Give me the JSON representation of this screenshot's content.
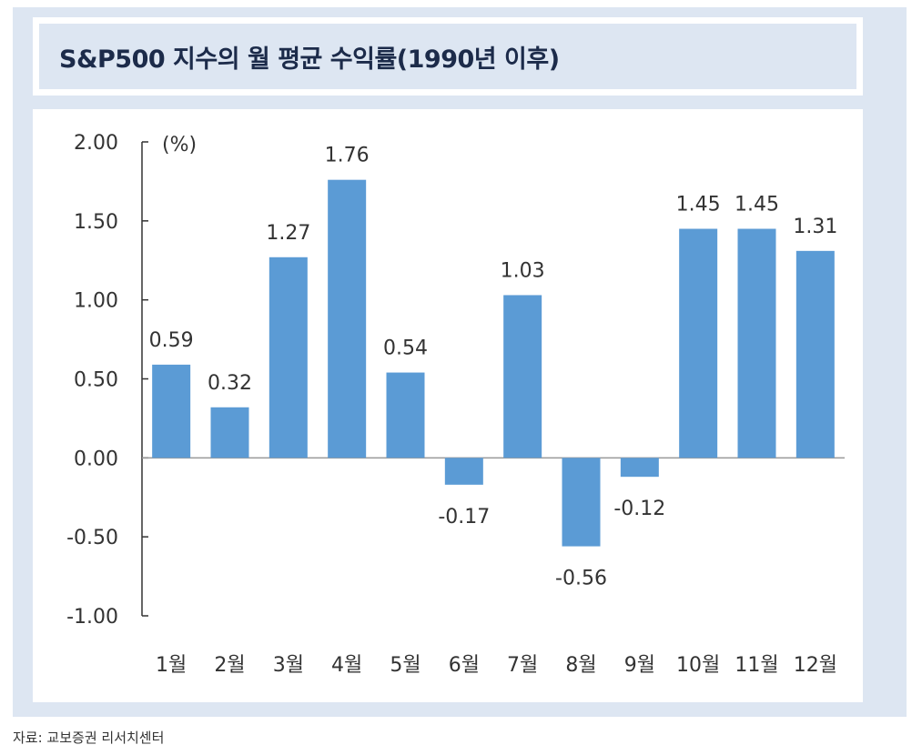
{
  "title": "S&P500 지수의 월 평균 수익률(1990년 이후)",
  "source": "자료: 교보증권 리서치센터",
  "chart_data": {
    "type": "bar",
    "title": "S&P500 지수의 월 평균 수익률(1990년 이후)",
    "ylabel": "(%)",
    "xlabel": "",
    "categories": [
      "1월",
      "2월",
      "3월",
      "4월",
      "5월",
      "6월",
      "7월",
      "8월",
      "9월",
      "10월",
      "11월",
      "12월"
    ],
    "values": [
      0.59,
      0.32,
      1.27,
      1.76,
      0.54,
      -0.17,
      1.03,
      -0.56,
      -0.12,
      1.45,
      1.45,
      1.31
    ],
    "value_labels": [
      "0.59",
      "0.32",
      "1.27",
      "1.76",
      "0.54",
      "-0.17",
      "1.03",
      "-0.56",
      "-0.12",
      "1.45",
      "1.45",
      "1.31"
    ],
    "ylim": [
      -1.0,
      2.0
    ],
    "yticks": [
      "-1.00",
      "-0.50",
      "0.00",
      "0.50",
      "1.00",
      "1.50",
      "2.00"
    ],
    "ytick_values": [
      -1.0,
      -0.5,
      0.0,
      0.5,
      1.0,
      1.5,
      2.0
    ],
    "grid": false,
    "legend": "none",
    "bar_color": "#5b9bd5"
  }
}
